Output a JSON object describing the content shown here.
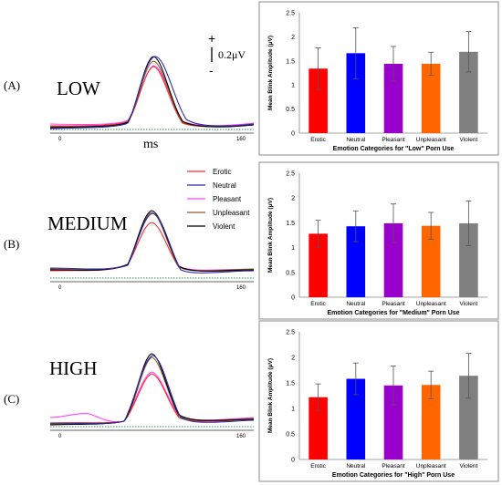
{
  "figure": {
    "scale": {
      "plus": "+",
      "minus": "-",
      "value": "0.2μV"
    },
    "x_axis_unit": "ms",
    "legend": {
      "entries": [
        {
          "name": "Erotic",
          "color": "#ff2a2a"
        },
        {
          "name": "Neutral",
          "color": "#2a2aaa"
        },
        {
          "name": "Pleasant",
          "color": "#ff44ff"
        },
        {
          "name": "Unpleasant",
          "color": "#8b5a2b"
        },
        {
          "name": "Violent",
          "color": "#000000"
        }
      ]
    }
  },
  "panels": [
    {
      "label": "(A)",
      "group": "LOW",
      "tick_start": "0",
      "tick_end": "160"
    },
    {
      "label": "(B)",
      "group": "MEDIUM",
      "tick_start": "0",
      "tick_end": "160"
    },
    {
      "label": "(C)",
      "group": "HIGH",
      "tick_start": "0",
      "tick_end": "160"
    }
  ],
  "chart_data": [
    {
      "type": "bar",
      "title": "",
      "xlabel": "Emotion Categories for \"Low\" Porn Use",
      "ylabel": "Mean Blink Amplitude (μV)",
      "ylim": [
        0,
        2.5
      ],
      "yticks": [
        "0",
        "0.5",
        "1",
        "1.5",
        "2",
        "2.5"
      ],
      "categories": [
        "Erotic",
        "Neutral",
        "Pleasant",
        "Unpleasant",
        "Violent"
      ],
      "values": [
        1.34,
        1.66,
        1.44,
        1.44,
        1.69
      ],
      "errors": [
        0.43,
        0.53,
        0.36,
        0.24,
        0.42
      ],
      "colors": [
        "#ff0000",
        "#0000ff",
        "#9900cc",
        "#ff6600",
        "#808080"
      ]
    },
    {
      "type": "bar",
      "title": "",
      "xlabel": "Emotion Categories for \"Medium\" Porn Use",
      "ylabel": "Mean Blink Amplitude (μV)",
      "ylim": [
        0,
        2.5
      ],
      "yticks": [
        "0",
        "0.5",
        "1",
        "1.5",
        "2",
        "2.5"
      ],
      "categories": [
        "Erotic",
        "Neutral",
        "Pleasant",
        "Unpleasant",
        "Violent"
      ],
      "values": [
        1.28,
        1.43,
        1.49,
        1.44,
        1.49
      ],
      "errors": [
        0.27,
        0.31,
        0.39,
        0.27,
        0.45
      ],
      "colors": [
        "#ff0000",
        "#0000ff",
        "#9900cc",
        "#ff6600",
        "#808080"
      ]
    },
    {
      "type": "bar",
      "title": "",
      "xlabel": "Emotion Categories for \"High\" Porn Use",
      "ylabel": "Mean Blink Amplitude (μV)",
      "ylim": [
        0,
        2.5
      ],
      "yticks": [
        "0",
        "0.5",
        "1",
        "1.5",
        "2",
        "2.5"
      ],
      "categories": [
        "Erotic",
        "Neutral",
        "Pleasant",
        "Unpleasant",
        "Violent"
      ],
      "values": [
        1.22,
        1.58,
        1.45,
        1.46,
        1.64
      ],
      "errors": [
        0.26,
        0.31,
        0.38,
        0.27,
        0.44
      ],
      "colors": [
        "#ff0000",
        "#0000ff",
        "#9900cc",
        "#ff6600",
        "#808080"
      ]
    }
  ]
}
